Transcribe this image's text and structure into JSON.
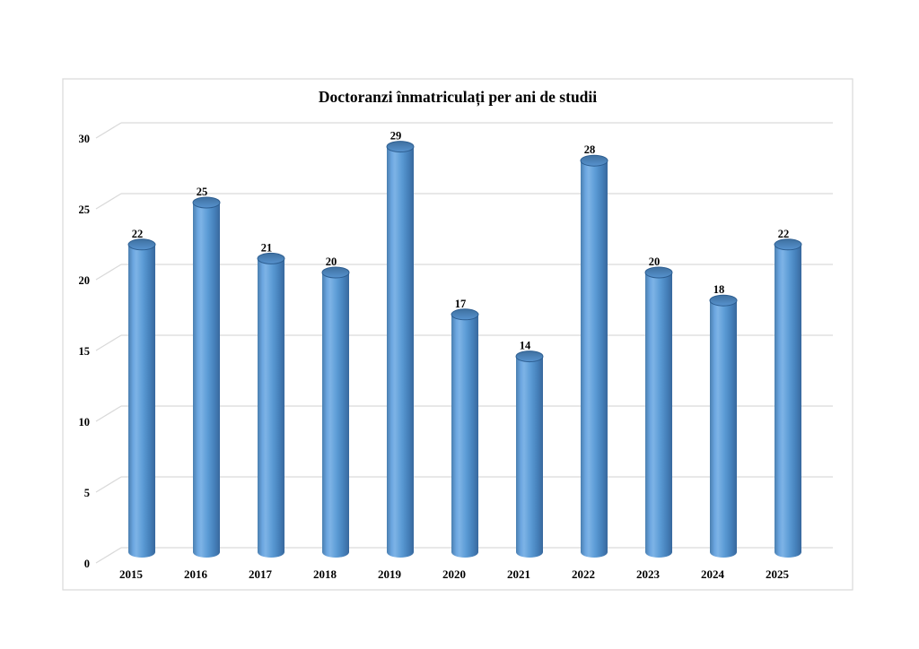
{
  "chart_data": {
    "type": "bar",
    "style": "3d-cylinder",
    "title": "Doctoranzi înmatriculați per ani de studii",
    "categories": [
      "2015",
      "2016",
      "2017",
      "2018",
      "2019",
      "2020",
      "2021",
      "2022",
      "2023",
      "2024",
      "2025"
    ],
    "values": [
      22,
      25,
      21,
      20,
      29,
      17,
      14,
      28,
      20,
      18,
      22
    ],
    "yticks": [
      0,
      5,
      10,
      15,
      20,
      25,
      30
    ],
    "ylim": [
      0,
      30
    ],
    "xlabel": "",
    "ylabel": "",
    "legend_position": "none",
    "grid": "horizontal",
    "colors": {
      "bar_left_edge": "#4A7FB0",
      "bar_highlight": "#7DB3E6",
      "bar_main": "#5B9BD5",
      "bar_shadow": "#38689D",
      "bar_top_dark": "#3F709F",
      "bar_top_light": "#5793CF",
      "bar_top_rim": "#2D5E91",
      "gridline": "#D9D9D9",
      "frame_border": "#D9D9D9",
      "background": "#FFFFFF",
      "text": "#000000"
    }
  }
}
